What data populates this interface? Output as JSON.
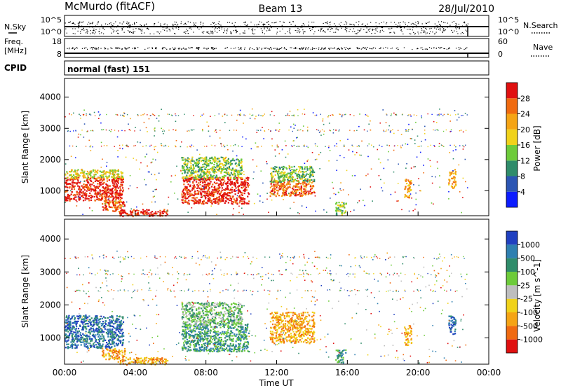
{
  "header": {
    "station": "McMurdo (fitACF)",
    "beam": "Beam 13",
    "date": "28/Jul/2010"
  },
  "noise_panel": {
    "left_label": "N.Sky",
    "left_ticks": [
      "10^5",
      "10^0"
    ],
    "right_ticks": [
      "10^5",
      "10^0"
    ],
    "right_label": "N.Search"
  },
  "freq_panel": {
    "left_label_line1": "Freq.",
    "left_label_line2": "[MHz]",
    "left_ticks": [
      "18",
      "8"
    ],
    "right_ticks": [
      "60",
      "0"
    ],
    "right_label": "Nave"
  },
  "cpid": {
    "label": "CPID",
    "value": "normal (fast) 151"
  },
  "x_axis": {
    "label": "Time UT",
    "ticks": [
      "00:00",
      "04:00",
      "08:00",
      "12:00",
      "16:00",
      "20:00",
      "00:00"
    ]
  },
  "chart_data": [
    {
      "type": "heatmap",
      "title": "Power",
      "ylabel": "Slant Range [km]",
      "yticks": [
        "1000",
        "2000",
        "3000",
        "4000"
      ],
      "ylim": [
        200,
        4600
      ],
      "xlim_hours": [
        0,
        24
      ],
      "colorbar": {
        "label": "Power [dB]",
        "ticks": [
          "4",
          "8",
          "12",
          "16",
          "20",
          "24",
          "28"
        ],
        "colors": [
          "#0c1cff",
          "#2b55b3",
          "#2f8c6a",
          "#6dcb3a",
          "#f0d21a",
          "#f5a415",
          "#f06a10",
          "#e01010"
        ]
      },
      "regions": [
        {
          "t0": 0.0,
          "t1": 3.3,
          "r0": 700,
          "r1": 1450,
          "level": 7
        },
        {
          "t0": 0.0,
          "t1": 3.3,
          "r0": 1400,
          "r1": 1700,
          "level": 4
        },
        {
          "t0": 2.1,
          "t1": 3.4,
          "r0": 350,
          "r1": 700,
          "level": 6
        },
        {
          "t0": 3.0,
          "t1": 5.8,
          "r0": 200,
          "r1": 420,
          "level": 7
        },
        {
          "t0": 6.6,
          "t1": 10.4,
          "r0": 600,
          "r1": 1450,
          "level": 7
        },
        {
          "t0": 6.6,
          "t1": 10.0,
          "r0": 1400,
          "r1": 2100,
          "level": 3
        },
        {
          "t0": 11.6,
          "t1": 14.1,
          "r0": 850,
          "r1": 1350,
          "level": 6
        },
        {
          "t0": 11.6,
          "t1": 14.1,
          "r0": 1300,
          "r1": 1800,
          "level": 3
        },
        {
          "t0": 15.3,
          "t1": 15.9,
          "r0": 250,
          "r1": 650,
          "level": 3
        },
        {
          "t0": 19.2,
          "t1": 19.6,
          "r0": 800,
          "r1": 1400,
          "level": 5
        },
        {
          "t0": 21.7,
          "t1": 22.1,
          "r0": 1100,
          "r1": 1700,
          "level": 5
        }
      ]
    },
    {
      "type": "heatmap",
      "title": "Velocity",
      "ylabel": "Slant Range [km]",
      "yticks": [
        "1000",
        "2000",
        "3000",
        "4000"
      ],
      "ylim": [
        200,
        4600
      ],
      "xlim_hours": [
        0,
        24
      ],
      "colorbar": {
        "label": "Velocity [m s^-1]",
        "ticks": [
          "1000",
          "500",
          "100",
          "25",
          "-25",
          "-100",
          "-500",
          "-1000"
        ],
        "colors": [
          "#2040c0",
          "#2e7fb0",
          "#2f8c6a",
          "#6dcb3a",
          "#bebebe",
          "#f0d21a",
          "#f5a415",
          "#f06a10",
          "#e01010"
        ]
      },
      "regions": [
        {
          "t0": 0.0,
          "t1": 3.3,
          "r0": 700,
          "r1": 1700,
          "level": 1
        },
        {
          "t0": 2.1,
          "t1": 3.4,
          "r0": 350,
          "r1": 700,
          "level": 6
        },
        {
          "t0": 3.0,
          "t1": 5.8,
          "r0": 200,
          "r1": 420,
          "level": 6
        },
        {
          "t0": 6.6,
          "t1": 10.4,
          "r0": 600,
          "r1": 1450,
          "level": 2
        },
        {
          "t0": 6.6,
          "t1": 10.0,
          "r0": 1400,
          "r1": 2100,
          "level": 3
        },
        {
          "t0": 11.6,
          "t1": 14.1,
          "r0": 850,
          "r1": 1800,
          "level": 6
        },
        {
          "t0": 15.3,
          "t1": 15.9,
          "r0": 250,
          "r1": 650,
          "level": 2
        },
        {
          "t0": 19.2,
          "t1": 19.6,
          "r0": 800,
          "r1": 1400,
          "level": 6
        },
        {
          "t0": 21.7,
          "t1": 22.1,
          "r0": 1100,
          "r1": 1700,
          "level": 1
        }
      ]
    }
  ]
}
